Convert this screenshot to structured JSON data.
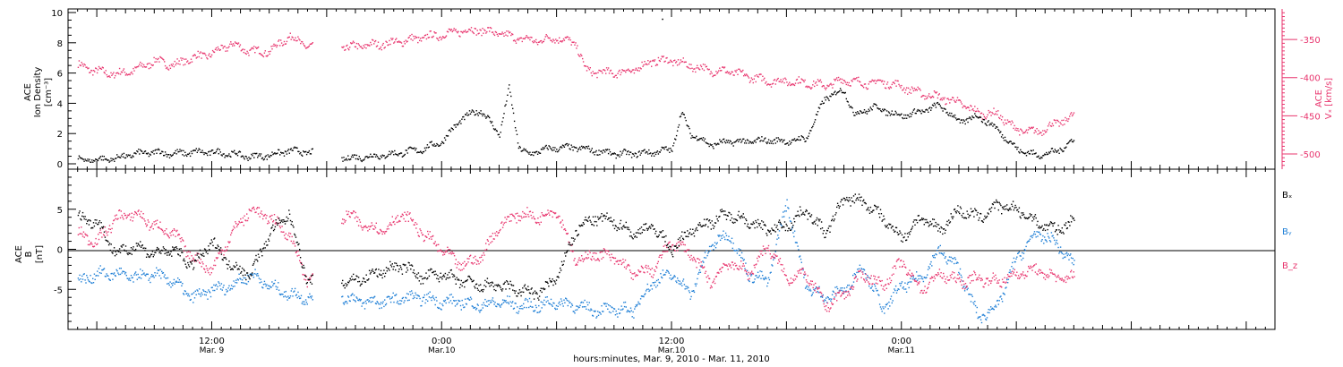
{
  "chart_data": [
    {
      "type": "scatter",
      "panel": "ion-density-velocity",
      "ylabel_left": [
        "ACE",
        "Ion Density",
        "[cm⁻³]"
      ],
      "ylabel_right": [
        "ACE",
        "Vₓ [km/s]"
      ],
      "ylim_left": [
        0,
        10
      ],
      "ylim_right": [
        -520,
        -310
      ],
      "left_ticks": [
        "0",
        "2",
        "4",
        "6",
        "8",
        "10"
      ],
      "left_tick_values": [
        0,
        2,
        4,
        6,
        8,
        10
      ],
      "right_ticks": [
        "-350",
        "-400",
        "-450",
        "-500"
      ],
      "right_tick_values": [
        -350,
        -400,
        -450,
        -500
      ],
      "series": [
        {
          "color": "#000000",
          "axis": "left",
          "x": [
            -14,
            -12,
            -10,
            -8,
            -6,
            -4,
            -2,
            0,
            2,
            4,
            6,
            8,
            10,
            14,
            16,
            18,
            20,
            22,
            24,
            26,
            28,
            30,
            31,
            32,
            33,
            34,
            35,
            36,
            38,
            40,
            42,
            44,
            46,
            48,
            49,
            50,
            52,
            54,
            56,
            58,
            60,
            62,
            64,
            66,
            67,
            68,
            69,
            70,
            72,
            74,
            76,
            78,
            80,
            82,
            84,
            86,
            88,
            90
          ],
          "y": [
            0.3,
            0.3,
            0.4,
            0.7,
            0.8,
            0.7,
            0.8,
            0.8,
            0.7,
            0.5,
            0.6,
            0.9,
            0.8,
            0.4,
            0.5,
            0.6,
            0.8,
            1.0,
            1.5,
            3.0,
            3.6,
            2.0,
            5.0,
            1.2,
            0.6,
            0.9,
            1.0,
            1.1,
            1.1,
            0.9,
            0.7,
            0.7,
            0.8,
            1.0,
            3.4,
            2.0,
            1.3,
            1.5,
            1.5,
            1.6,
            1.5,
            1.7,
            4.4,
            4.9,
            3.3,
            3.5,
            3.8,
            3.6,
            3.2,
            3.5,
            3.9,
            2.8,
            3.2,
            2.3,
            1.0,
            0.6,
            0.8,
            1.6
          ]
        },
        {
          "color": "#e8356e",
          "axis": "right",
          "x": [
            -14,
            -12,
            -10,
            -8,
            -6,
            -4,
            -2,
            0,
            2,
            4,
            6,
            8,
            10,
            14,
            16,
            18,
            20,
            22,
            24,
            26,
            28,
            30,
            32,
            34,
            36,
            38,
            39,
            40,
            42,
            44,
            46,
            48,
            50,
            52,
            54,
            56,
            58,
            60,
            62,
            64,
            66,
            68,
            70,
            72,
            74,
            76,
            78,
            80,
            82,
            84,
            86,
            88,
            90
          ],
          "y": [
            -383,
            -391,
            -395,
            -389,
            -377,
            -383,
            -373,
            -368,
            -355,
            -365,
            -365,
            -345,
            -358,
            -360,
            -357,
            -355,
            -351,
            -347,
            -343,
            -338,
            -337,
            -342,
            -348,
            -351,
            -347,
            -355,
            -390,
            -392,
            -393,
            -390,
            -377,
            -377,
            -384,
            -390,
            -391,
            -398,
            -404,
            -404,
            -406,
            -410,
            -402,
            -407,
            -405,
            -411,
            -420,
            -425,
            -432,
            -446,
            -447,
            -468,
            -471,
            -460,
            -450
          ]
        }
      ]
    },
    {
      "type": "scatter",
      "panel": "magnetic-field",
      "ylabel": [
        "ACE",
        "B",
        "[nT]"
      ],
      "ylim": [
        -10,
        10
      ],
      "ticks": [
        "5",
        "0",
        "-5"
      ],
      "tick_values": [
        5,
        0,
        -5
      ],
      "zero_line": true,
      "series": [
        {
          "name": "Bₓ",
          "color": "#000000",
          "x": [
            -14,
            -12,
            -10,
            -8,
            -6,
            -4,
            -2,
            0,
            2,
            4,
            6,
            8,
            10,
            14,
            16,
            18,
            20,
            22,
            24,
            26,
            28,
            30,
            32,
            34,
            36,
            38,
            40,
            42,
            44,
            46,
            48,
            50,
            52,
            54,
            56,
            58,
            60,
            62,
            64,
            66,
            68,
            70,
            72,
            74,
            76,
            78,
            80,
            82,
            84,
            86,
            88,
            90
          ],
          "y": [
            4.0,
            3.5,
            -0.5,
            0.5,
            -0.5,
            0.0,
            -2.0,
            1.0,
            -2.0,
            -3.0,
            2.0,
            4.5,
            -4.0,
            -4.0,
            -3.5,
            -2.5,
            -2.0,
            -3.5,
            -3.0,
            -4.0,
            -4.5,
            -4.5,
            -5.0,
            -5.5,
            -3.5,
            2.5,
            4.0,
            3.5,
            2.0,
            3.0,
            0.0,
            2.5,
            3.5,
            4.5,
            3.5,
            2.5,
            3.0,
            5.0,
            2.0,
            6.5,
            6.0,
            4.0,
            1.5,
            4.0,
            2.5,
            5.0,
            4.0,
            5.5,
            5.0,
            3.5,
            2.5,
            3.5
          ]
        },
        {
          "name": "Bᵧ",
          "color": "#1f7fd6",
          "x": [
            -14,
            -12,
            -10,
            -8,
            -6,
            -4,
            -2,
            0,
            2,
            4,
            6,
            8,
            10,
            14,
            16,
            18,
            20,
            22,
            24,
            26,
            28,
            30,
            32,
            34,
            36,
            38,
            40,
            42,
            44,
            46,
            48,
            50,
            52,
            54,
            56,
            58,
            60,
            62,
            64,
            66,
            68,
            70,
            72,
            74,
            76,
            78,
            80,
            82,
            84,
            86,
            88,
            90
          ],
          "y": [
            -4.0,
            -3.0,
            -3.0,
            -3.5,
            -3.0,
            -4.0,
            -6.0,
            -5.0,
            -4.5,
            -3.0,
            -4.5,
            -5.5,
            -6.0,
            -6.0,
            -6.5,
            -6.5,
            -6.0,
            -6.0,
            -6.5,
            -6.5,
            -7.0,
            -6.5,
            -7.0,
            -7.0,
            -6.5,
            -7.0,
            -7.5,
            -7.5,
            -7.5,
            -4.0,
            -3.0,
            -5.5,
            0.5,
            2.0,
            -3.0,
            -4.0,
            6.0,
            -4.5,
            -6.0,
            -5.0,
            -2.0,
            -7.5,
            -4.5,
            -3.5,
            0.0,
            -2.5,
            -8.5,
            -7.0,
            -1.0,
            2.0,
            1.0,
            -2.0
          ]
        },
        {
          "name": "B_z",
          "color": "#e8356e",
          "x": [
            -14,
            -12,
            -10,
            -8,
            -6,
            -4,
            -2,
            0,
            2,
            4,
            6,
            8,
            10,
            14,
            16,
            18,
            20,
            22,
            24,
            26,
            28,
            30,
            32,
            34,
            36,
            38,
            40,
            42,
            44,
            46,
            48,
            50,
            52,
            54,
            56,
            58,
            60,
            62,
            64,
            66,
            68,
            70,
            72,
            74,
            76,
            78,
            80,
            82,
            84,
            86,
            88,
            90
          ],
          "y": [
            2.0,
            1.0,
            4.0,
            4.5,
            3.0,
            2.0,
            -1.0,
            -2.5,
            2.0,
            5.0,
            4.0,
            2.0,
            -4.0,
            4.5,
            3.0,
            2.5,
            4.5,
            2.0,
            0.0,
            -2.0,
            -1.0,
            3.0,
            4.5,
            4.0,
            5.0,
            -1.5,
            -0.5,
            -1.0,
            -3.0,
            -2.5,
            1.0,
            -0.5,
            -4.0,
            -1.5,
            -3.0,
            0.5,
            -3.5,
            -3.0,
            -7.0,
            -5.5,
            -3.0,
            -4.5,
            -1.5,
            -5.0,
            -3.0,
            -4.0,
            -3.5,
            -4.0,
            -3.0,
            -2.5,
            -3.5,
            -3.5
          ]
        }
      ]
    }
  ],
  "x_axis": {
    "tick_values": [
      0,
      24,
      48,
      72
    ],
    "tick_labels": [
      "12:00",
      "0:00",
      "12:00",
      "0:00"
    ],
    "date_labels": [
      "Mar. 9",
      "Mar.10",
      "Mar.10",
      "Mar.11"
    ],
    "xlim": [
      -15,
      111
    ],
    "title": "hours:minutes, Mar.  9, 2010 - Mar. 11, 2010"
  },
  "legend": {
    "bx": "Bₓ",
    "by": "Bᵧ",
    "bz": "B_z"
  },
  "colors": {
    "black": "#000000",
    "blue": "#1f7fd6",
    "pink": "#e8356e"
  },
  "isolated_points": {
    "density_x": 47,
    "density_y": 9.6
  }
}
